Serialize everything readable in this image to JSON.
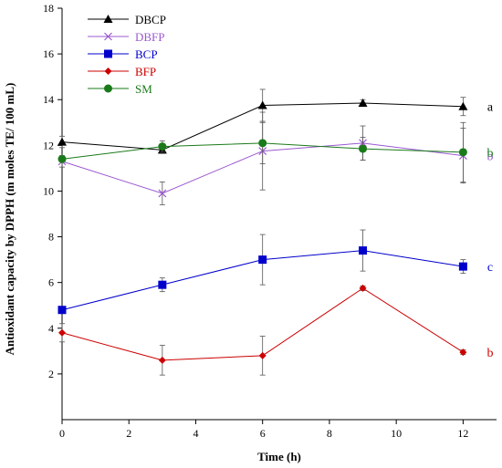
{
  "chart_data": {
    "type": "line",
    "title": "",
    "xlabel": "Time (h)",
    "ylabel": "Antioxidant capacity by DPPH (m moles TE/ 100 mL)",
    "xlim": [
      0,
      13
    ],
    "ylim": [
      0,
      18
    ],
    "x_ticks": [
      0,
      2,
      4,
      6,
      8,
      10,
      12
    ],
    "y_ticks": [
      2,
      4,
      6,
      8,
      10,
      12,
      14,
      16,
      18
    ],
    "x": [
      0,
      3,
      6,
      9,
      12
    ],
    "grid": false,
    "legend_position": "top-left",
    "series": [
      {
        "name": "DBCP",
        "color": "#000000",
        "marker": "triangle",
        "values": [
          12.15,
          11.8,
          13.75,
          13.85,
          13.7
        ],
        "errors": [
          0.25,
          0.15,
          0.7,
          0.15,
          0.4
        ],
        "sig_letter": "a"
      },
      {
        "name": "DBFP",
        "color": "#9b59d0",
        "marker": "x",
        "values": [
          11.3,
          9.9,
          11.75,
          12.1,
          11.55
        ],
        "errors": [
          0.25,
          0.5,
          1.7,
          0.75,
          1.2
        ],
        "sig_letter": "b"
      },
      {
        "name": "BCP",
        "color": "#0000cc",
        "marker": "square",
        "values": [
          4.8,
          5.9,
          7.0,
          7.4,
          6.7
        ],
        "errors": [
          0.15,
          0.3,
          1.1,
          0.9,
          0.3
        ],
        "sig_letter": "c"
      },
      {
        "name": "BFP",
        "color": "#cc0000",
        "marker": "diamond",
        "values": [
          3.8,
          2.6,
          2.8,
          5.75,
          2.95
        ],
        "errors": [
          0.4,
          0.65,
          0.85,
          0.1,
          0.1
        ],
        "sig_letter": "b"
      },
      {
        "name": "SM",
        "color": "#1a7a1a",
        "marker": "circle",
        "values": [
          11.4,
          11.95,
          12.1,
          11.85,
          11.7
        ],
        "errors": [
          0.1,
          0.25,
          0.9,
          0.5,
          1.3
        ],
        "sig_letter": "b"
      }
    ]
  }
}
